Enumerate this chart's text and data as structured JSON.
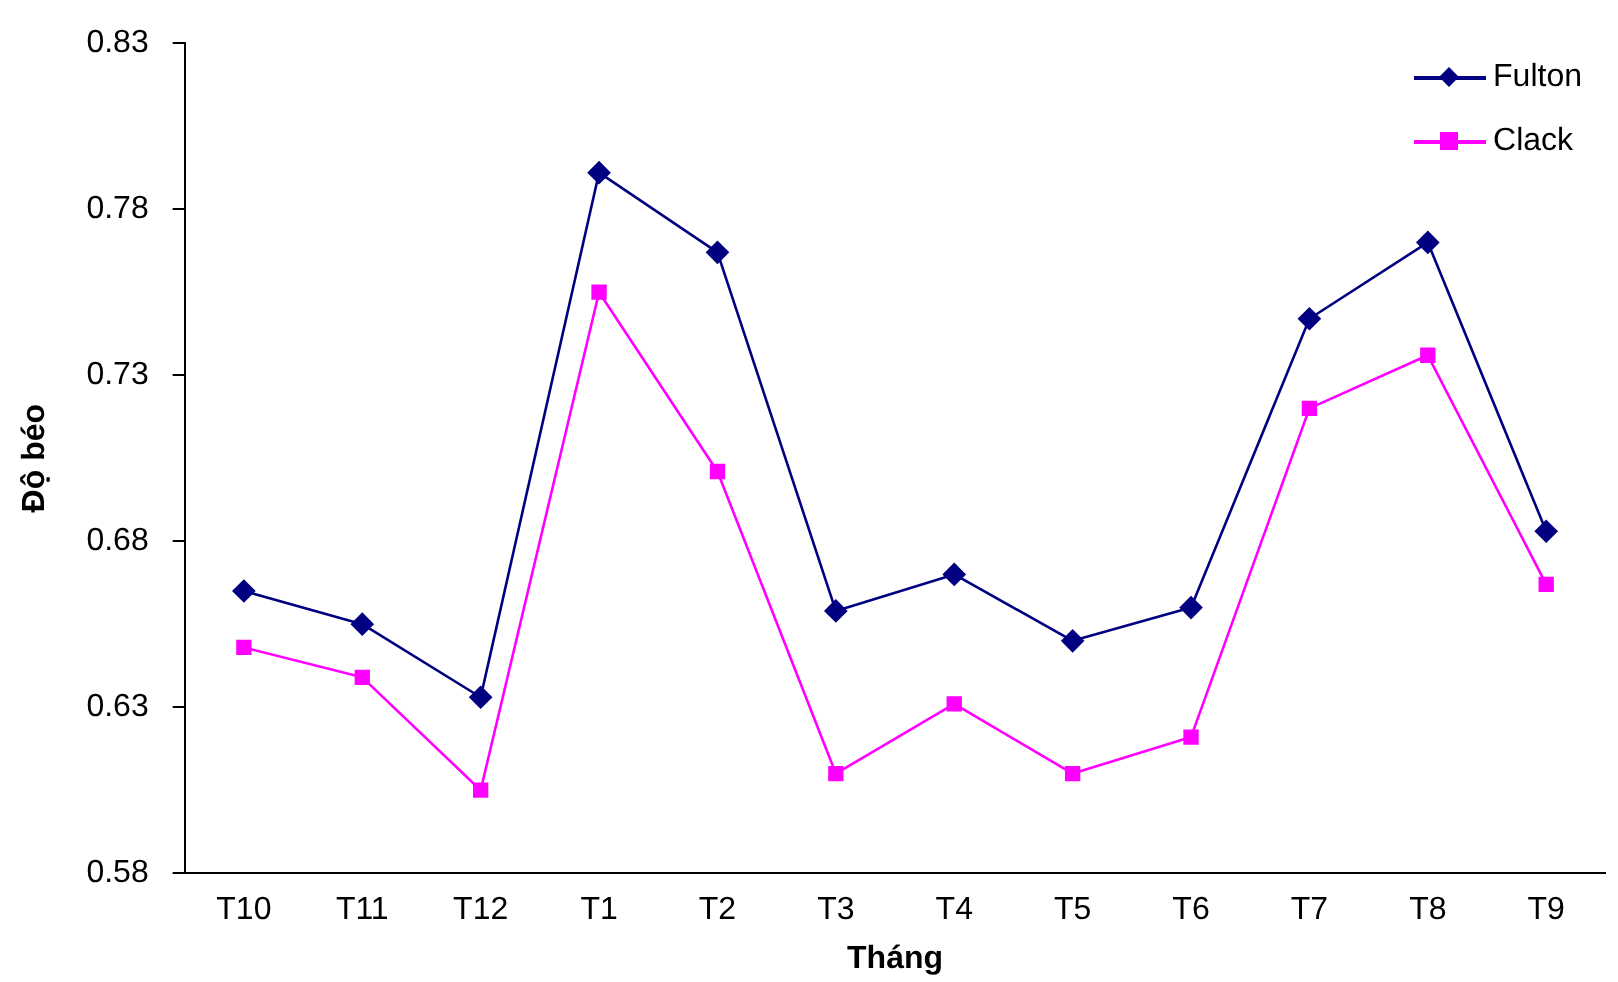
{
  "chart_data": {
    "type": "line",
    "xlabel": "Tháng",
    "ylabel": "Độ béo",
    "categories": [
      "T10",
      "T11",
      "T12",
      "T1",
      "T2",
      "T3",
      "T4",
      "T5",
      "T6",
      "T7",
      "T8",
      "T9"
    ],
    "series": [
      {
        "name": "Fulton",
        "color": "#000080",
        "marker": "diamond",
        "values": [
          0.665,
          0.655,
          0.633,
          0.791,
          0.767,
          0.659,
          0.67,
          0.65,
          0.66,
          0.747,
          0.77,
          0.683
        ]
      },
      {
        "name": "Clack",
        "color": "#ff00ff",
        "marker": "square",
        "values": [
          0.648,
          0.639,
          0.605,
          0.755,
          0.701,
          0.61,
          0.631,
          0.61,
          0.621,
          0.72,
          0.736,
          0.667
        ]
      }
    ],
    "ylim": [
      0.58,
      0.83
    ],
    "yticks": [
      0.58,
      0.63,
      0.68,
      0.73,
      0.78,
      0.83
    ],
    "grid": false,
    "legend": "top right",
    "line_style": "solid"
  }
}
